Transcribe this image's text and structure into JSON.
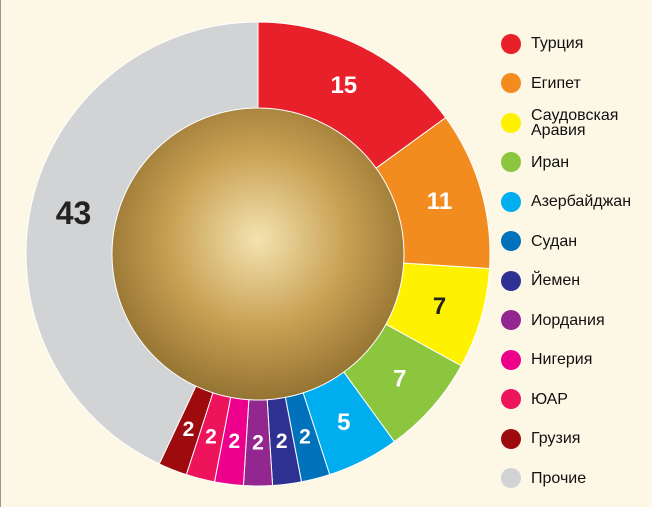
{
  "chart_data": {
    "type": "donut",
    "categories": [
      "Турция",
      "Египет",
      "Саудовская Аравия",
      "Иран",
      "Азербайджан",
      "Судан",
      "Йемен",
      "Иордания",
      "Нигерия",
      "ЮАР",
      "Грузия",
      "Прочие"
    ],
    "values": [
      15,
      11,
      7,
      7,
      5,
      2,
      2,
      2,
      2,
      2,
      2,
      43
    ],
    "colors": [
      "#e8202a",
      "#f28c1e",
      "#fff200",
      "#8cc63f",
      "#00aeef",
      "#0072bc",
      "#2e3192",
      "#92278f",
      "#ec008c",
      "#ed145b",
      "#9e0b0f",
      "#d1d3d4"
    ],
    "legend": "right"
  }
}
